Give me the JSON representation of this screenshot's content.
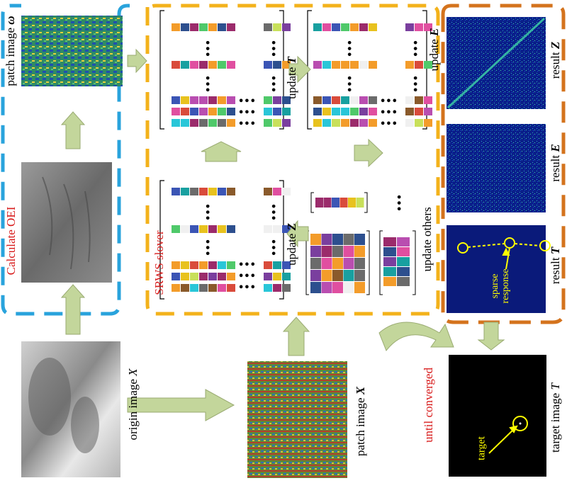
{
  "labels": {
    "patch_image_omega": "patch image",
    "omega_symbol": "ω",
    "calculate_oei": "Calculate OEI",
    "origin_image": "origin image",
    "origin_var": "X",
    "patch_image_x": "patch image",
    "patch_x_var": "X",
    "srws_solver": "SRWS slover",
    "update_t": "update",
    "update_t_var": "T",
    "update_e": "update",
    "update_e_var": "E",
    "update_z": "update",
    "update_z_var": "Z",
    "update_others": "update others",
    "until_converged": "until converged",
    "result_z": "result",
    "result_z_var": "Z",
    "result_e": "result",
    "result_e_var": "E",
    "result_t": "result",
    "result_t_var": "T",
    "sparse_response_1": "sparse",
    "sparse_response_2": "response",
    "target_image": "target image",
    "target_image_var": "T",
    "target": "target",
    "ellipsis": "•••",
    "vellipsis": "⋮"
  },
  "colors": {
    "blue_dash": "#29a3dc",
    "yellow_dash": "#f3b21b",
    "orange_dash": "#d4731d",
    "arrow_fill": "#c3d69b",
    "arrow_stroke": "#9aab72",
    "red_text": "#d81b1b",
    "yellow_marker": "#ffff00"
  }
}
